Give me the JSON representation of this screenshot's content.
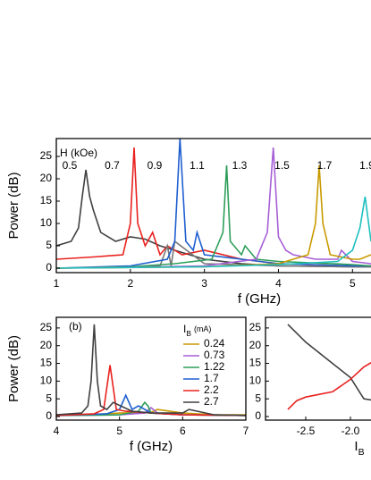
{
  "chart_data": [
    {
      "type": "line",
      "xlabel": "f (GHz)",
      "ylabel": "Power (dB)",
      "annotation_title": "H (kOe)",
      "annotations": [
        "0.5",
        "0.7",
        "0.9",
        "1.1",
        "1.3",
        "1.5",
        "1.7",
        "1.9"
      ],
      "xlim": [
        1,
        5.25
      ],
      "ylim": [
        -1,
        29
      ],
      "xticks": [
        1,
        2,
        3,
        4,
        5
      ],
      "yticks": [
        0,
        5,
        10,
        15,
        20,
        25
      ],
      "series": [
        {
          "color": "#404040",
          "x": [
            1,
            1.2,
            1.3,
            1.35,
            1.4,
            1.45,
            1.5,
            1.6,
            1.8,
            2.0,
            2.2,
            2.4,
            2.6,
            3.0,
            3.5,
            4,
            5,
            5.25
          ],
          "values": [
            5,
            6,
            9,
            16,
            22,
            16,
            13,
            8,
            6,
            7,
            6.5,
            5,
            4,
            2,
            1,
            0.5,
            0.3,
            0.3
          ]
        },
        {
          "color": "#e8221f",
          "x": [
            1,
            1.5,
            1.9,
            2.0,
            2.05,
            2.1,
            2.2,
            2.3,
            2.4,
            2.5,
            2.7,
            3.0,
            3.5,
            4,
            5,
            5.25
          ],
          "values": [
            2,
            2.5,
            3,
            10,
            27,
            10,
            5,
            8,
            3,
            5,
            3,
            4,
            2,
            1,
            0.5,
            0.5
          ]
        },
        {
          "color": "#777777",
          "x": [
            1,
            2,
            2.4,
            2.5,
            2.55,
            2.6,
            3,
            4,
            5,
            5.25
          ],
          "values": [
            0,
            0.2,
            0.5,
            5,
            0.5,
            6,
            1,
            0.5,
            0.3,
            0.3
          ]
        },
        {
          "color": "#1f5fd0",
          "x": [
            1,
            2,
            2.5,
            2.6,
            2.67,
            2.75,
            2.85,
            2.9,
            3.0,
            3.5,
            4,
            5,
            5.25
          ],
          "values": [
            0,
            0.5,
            2,
            6,
            29,
            6,
            4,
            8,
            3,
            2,
            1,
            0.5,
            0.5
          ]
        },
        {
          "color": "#2e9e5a",
          "x": [
            1,
            2,
            2.6,
            3.1,
            3.25,
            3.3,
            3.35,
            3.5,
            3.55,
            3.7,
            4,
            5,
            5.25
          ],
          "values": [
            0,
            0.3,
            1,
            2,
            8,
            23,
            6,
            3,
            5,
            2,
            1.5,
            0.8,
            0.5
          ]
        },
        {
          "color": "#a65fd6",
          "x": [
            1,
            2,
            3,
            3.7,
            3.85,
            3.93,
            4.0,
            4.1,
            4.2,
            4.5,
            4.8,
            4.85,
            5,
            5.25
          ],
          "values": [
            0,
            0.2,
            0.5,
            2,
            8,
            27,
            7,
            4,
            3,
            2,
            2,
            4,
            1.5,
            1
          ]
        },
        {
          "color": "#c89a00",
          "x": [
            1,
            3,
            4,
            4.4,
            4.5,
            4.55,
            4.6,
            4.7,
            5,
            5.1,
            5.25
          ],
          "values": [
            0,
            0.3,
            1,
            3,
            10,
            23,
            10,
            3,
            2,
            2,
            3
          ]
        },
        {
          "color": "#1fbfbf",
          "x": [
            1,
            3,
            4,
            4.8,
            5.0,
            5.1,
            5.17,
            5.25
          ],
          "values": [
            0,
            0.3,
            0.8,
            1.5,
            4,
            9,
            16,
            6
          ]
        }
      ]
    },
    {
      "type": "line",
      "panel_label": "(b)",
      "xlabel": "f (GHz)",
      "ylabel": "Power (dB)",
      "legend_title": {
        "text": "I",
        "subscript": "B",
        "suffix": "(mA)"
      },
      "xlim": [
        4,
        7
      ],
      "ylim": [
        -1,
        28
      ],
      "xticks": [
        4,
        5,
        6,
        7
      ],
      "yticks": [
        0,
        5,
        10,
        15,
        20,
        25
      ],
      "series": [
        {
          "name": "0.24",
          "color": "#c89a00",
          "x": [
            4,
            4.5,
            5,
            5.5,
            5.6,
            6,
            6.5,
            7
          ],
          "values": [
            0.5,
            0.5,
            1,
            1.2,
            2,
            1,
            0.5,
            0.5
          ]
        },
        {
          "name": "0.73",
          "color": "#a65fd6",
          "x": [
            4,
            5,
            5.4,
            5.5,
            5.6,
            6,
            7
          ],
          "values": [
            0.3,
            0.5,
            1,
            2.5,
            1,
            0.5,
            0.3
          ]
        },
        {
          "name": "1.22",
          "color": "#2e9e5a",
          "x": [
            4,
            5,
            5.3,
            5.4,
            5.45,
            5.5,
            6,
            7
          ],
          "values": [
            0.3,
            0.5,
            1.5,
            4,
            3,
            1,
            0.5,
            0.3
          ]
        },
        {
          "name": "1.7",
          "color": "#1f5fd0",
          "x": [
            4,
            4.8,
            5.0,
            5.1,
            5.2,
            5.3,
            5.5,
            6,
            7
          ],
          "values": [
            0.3,
            0.8,
            2,
            6,
            2,
            3,
            1,
            0.5,
            0.3
          ]
        },
        {
          "name": "2.2",
          "color": "#e8221f",
          "x": [
            4,
            4.6,
            4.75,
            4.85,
            4.95,
            5.1,
            5.5,
            6,
            7
          ],
          "values": [
            0.3,
            0.8,
            2,
            14.5,
            2,
            1.5,
            1,
            0.5,
            0.3
          ]
        },
        {
          "name": "2.7",
          "color": "#404040",
          "x": [
            4,
            4.4,
            4.5,
            4.55,
            4.6,
            4.65,
            4.7,
            4.8,
            4.9,
            5.2,
            5.5,
            6,
            6.1,
            6.5,
            7
          ],
          "values": [
            0.5,
            1,
            3,
            10,
            26,
            10,
            3,
            2,
            4,
            1.5,
            1,
            1,
            2,
            0.5,
            0.3
          ]
        }
      ]
    },
    {
      "type": "line",
      "xlabel": {
        "text": "I",
        "subscript": "B"
      },
      "xlim": [
        -2.95,
        -1.77
      ],
      "ylim": [
        -1,
        28
      ],
      "xticks": [
        -2.5,
        {
          "value": -2.0,
          "label": "-2.0"
        }
      ],
      "yticks": [
        0,
        5,
        10,
        15,
        20,
        25
      ],
      "series": [
        {
          "color": "#404040",
          "x": [
            -2.7,
            -2.5,
            -2.2,
            -2.0,
            -1.85,
            -1.75
          ],
          "values": [
            26,
            21,
            15,
            11,
            5,
            4.6
          ]
        },
        {
          "color": "#e8221f",
          "x": [
            -2.7,
            -2.6,
            -2.5,
            -2.2,
            -2.0,
            -1.85,
            -1.75
          ],
          "values": [
            2,
            4.5,
            5.5,
            7,
            10.5,
            14,
            15.5
          ]
        }
      ]
    }
  ]
}
